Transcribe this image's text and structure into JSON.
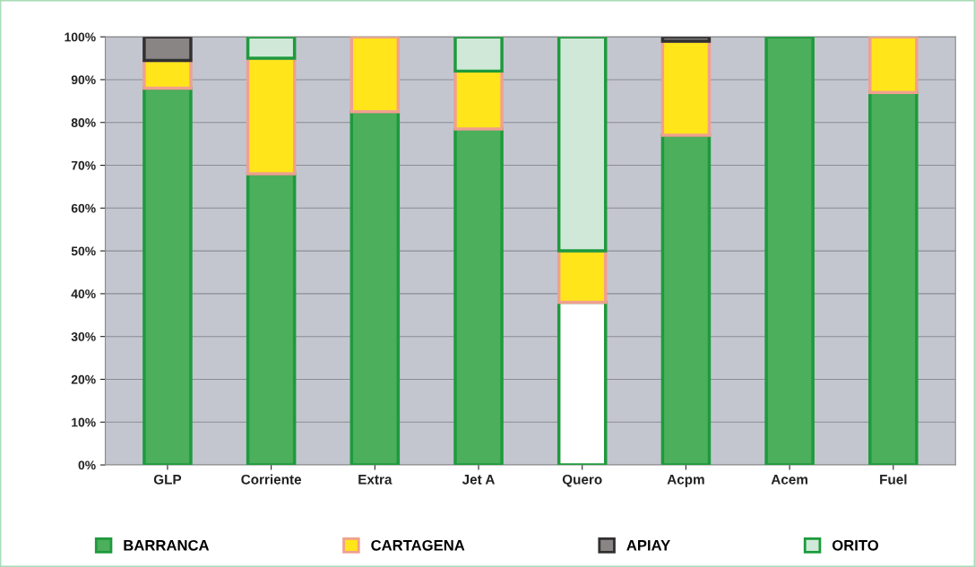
{
  "chart_data": {
    "type": "bar",
    "stacked": true,
    "categories": [
      "GLP",
      "Corriente",
      "Extra",
      "Jet A",
      "Quero",
      "Acpm",
      "Acem",
      "Fuel"
    ],
    "series": [
      {
        "name": "BARRANCA",
        "color": "#4caf5c",
        "colors": [
          "#4caf5c",
          "#4caf5c",
          "#4caf5c",
          "#4caf5c",
          "#ffffff",
          "#4caf5c",
          "#4caf5c",
          "#4caf5c"
        ],
        "values": [
          88,
          68,
          82.5,
          78.5,
          38,
          77,
          100,
          87
        ]
      },
      {
        "name": "CARTAGENA",
        "color": "#ffe51a",
        "values": [
          6.5,
          27,
          17.5,
          13.5,
          12,
          22,
          null,
          13
        ]
      },
      {
        "name": "APIAY",
        "color": "#8a8585",
        "values": [
          5.5,
          null,
          null,
          null,
          null,
          1,
          null,
          null
        ]
      },
      {
        "name": "ORITO",
        "color": "#cfe8d8",
        "values": [
          null,
          5,
          null,
          8,
          50,
          null,
          null,
          null
        ]
      }
    ],
    "ylim": [
      0,
      100
    ],
    "yticks": [
      {
        "value": 0,
        "label": "0%"
      },
      {
        "value": 10,
        "label": "10%"
      },
      {
        "value": 20,
        "label": "20%"
      },
      {
        "value": 30,
        "label": "30%"
      },
      {
        "value": 40,
        "label": "40%"
      },
      {
        "value": 50,
        "label": "50%"
      },
      {
        "value": 60,
        "label": "60%"
      },
      {
        "value": 70,
        "label": "70%"
      },
      {
        "value": 80,
        "label": "80%"
      },
      {
        "value": 90,
        "label": "90%"
      },
      {
        "value": 100,
        "label": "100%"
      }
    ],
    "grid": "y",
    "legend": "bottom"
  }
}
